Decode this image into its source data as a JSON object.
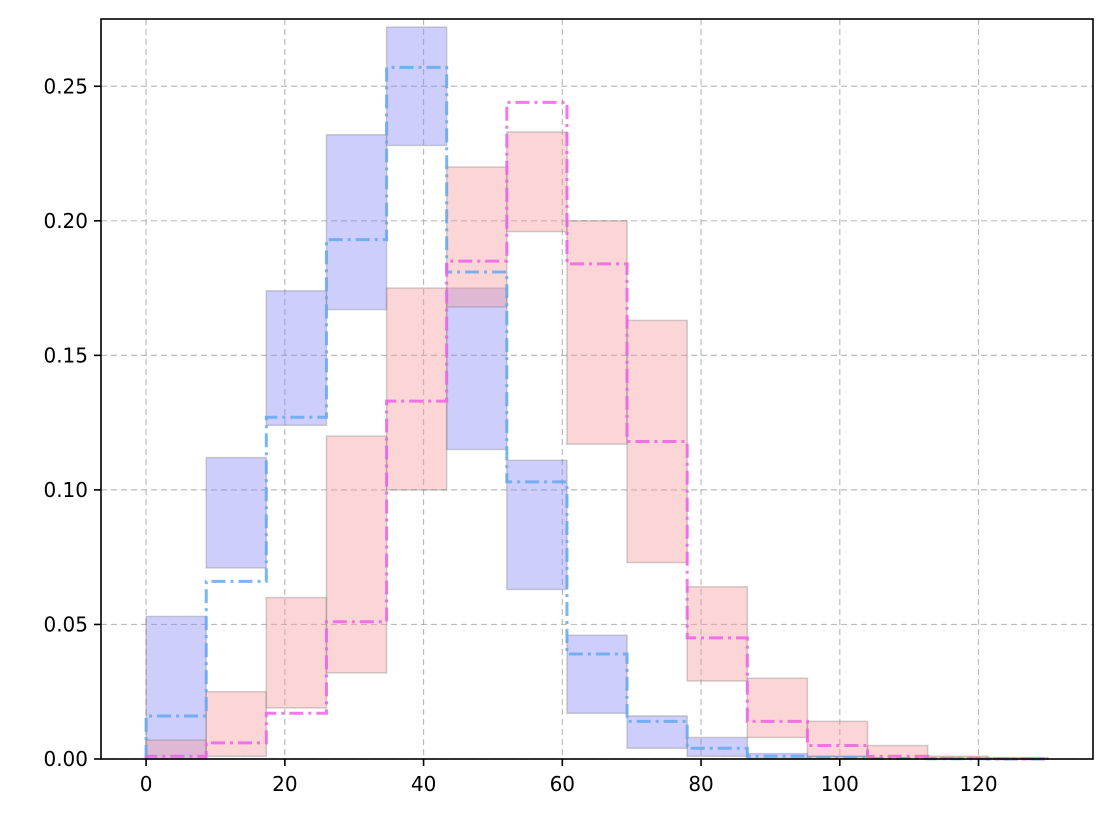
{
  "chart_data": {
    "type": "histogram-step",
    "x_ticks": [
      0,
      20,
      40,
      60,
      80,
      100,
      120
    ],
    "y_ticks": [
      0.0,
      0.05,
      0.1,
      0.15,
      0.2,
      0.25
    ],
    "x_tick_labels": [
      "0",
      "20",
      "40",
      "60",
      "80",
      "100",
      "120"
    ],
    "y_tick_labels": [
      "0.00",
      "0.05",
      "0.10",
      "0.15",
      "0.20",
      "0.25"
    ],
    "xlim": [
      -6.5,
      136.5
    ],
    "ylim": [
      0,
      0.275
    ],
    "grid": true,
    "grid_style": "dashed",
    "bin_edges": [
      0,
      8.67,
      17.33,
      26.0,
      34.67,
      43.33,
      52.0,
      60.67,
      69.33,
      78.0,
      86.67,
      95.33,
      104.0,
      112.67,
      121.33,
      130.0
    ],
    "series": [
      {
        "color": "#64a8f0",
        "band_color": "#8a8af8",
        "values": [
          0.016,
          0.066,
          0.127,
          0.193,
          0.257,
          0.181,
          0.103,
          0.039,
          0.014,
          0.004,
          0.001,
          0.0005,
          0.0002,
          0.0001,
          0.0
        ],
        "lower": [
          0.0,
          0.071,
          0.124,
          0.167,
          0.228,
          0.115,
          0.063,
          0.017,
          0.004,
          0.001,
          0.0,
          0.0,
          0.0,
          0.0,
          0.0
        ],
        "upper": [
          0.053,
          0.112,
          0.174,
          0.232,
          0.272,
          0.175,
          0.111,
          0.046,
          0.016,
          0.008,
          0.002,
          0.001,
          0.0,
          0.0,
          0.0
        ]
      },
      {
        "color": "#f060e8",
        "band_color": "#f99a9e",
        "values": [
          0.001,
          0.006,
          0.017,
          0.051,
          0.133,
          0.185,
          0.244,
          0.184,
          0.118,
          0.045,
          0.014,
          0.005,
          0.001,
          0.0003,
          0.0001
        ],
        "lower": [
          0.0,
          0.001,
          0.019,
          0.032,
          0.1,
          0.168,
          0.196,
          0.117,
          0.073,
          0.029,
          0.008,
          0.001,
          0.0,
          0.0,
          0.0
        ],
        "upper": [
          0.007,
          0.025,
          0.06,
          0.12,
          0.175,
          0.22,
          0.233,
          0.2,
          0.163,
          0.064,
          0.03,
          0.014,
          0.005,
          0.001,
          0.0005
        ]
      }
    ]
  }
}
